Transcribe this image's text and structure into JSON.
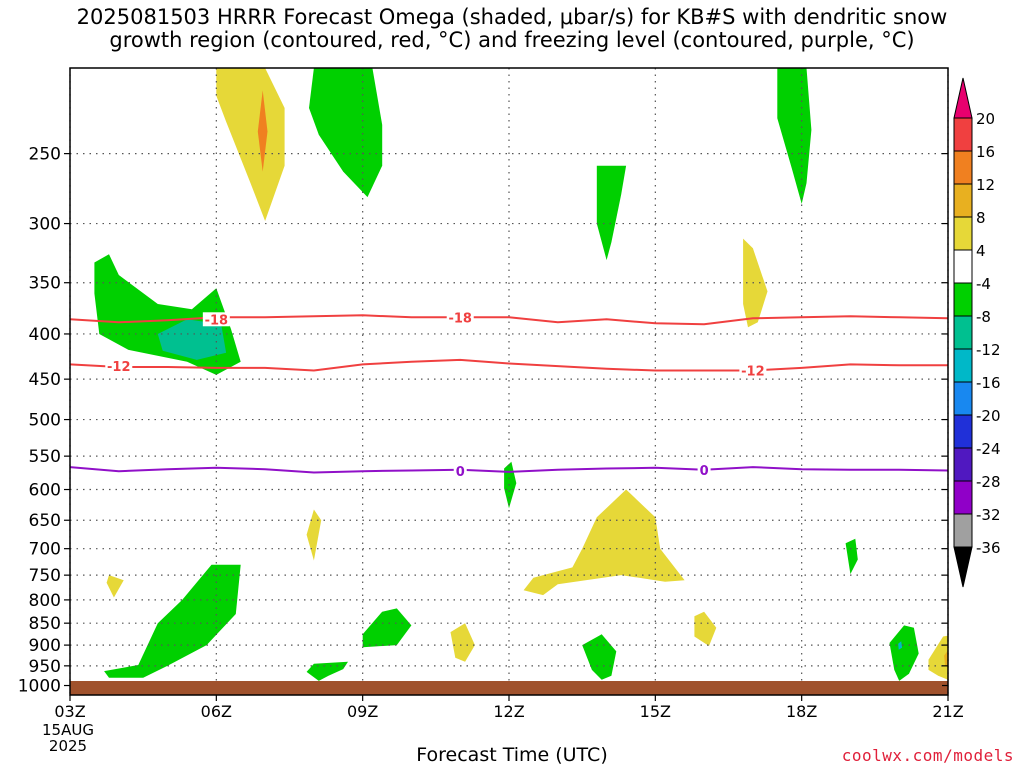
{
  "chart_data": {
    "type": "heatmap",
    "title_line1": "2025081503 HRRR Forecast Omega (shaded, μbar/s) for KB#S with dendritic snow",
    "title_line2": "growth region (contoured, red, °C) and freezing level (contoured, purple, °C)",
    "xlabel": "Forecast Time (UTC)",
    "ylabel": "",
    "x_ticks": [
      "03Z",
      "06Z",
      "09Z",
      "12Z",
      "15Z",
      "18Z",
      "21Z"
    ],
    "x_tick_hours": [
      3,
      6,
      9,
      12,
      15,
      18,
      21
    ],
    "x_date_lines": [
      "15AUG",
      "2025"
    ],
    "xlim": [
      3,
      21
    ],
    "y_ticks": [
      250,
      300,
      350,
      400,
      450,
      500,
      550,
      600,
      650,
      700,
      750,
      800,
      850,
      900,
      950,
      1000
    ],
    "ylim": [
      200,
      1025
    ],
    "y_scale": "log-pressure, inverted",
    "grid": true,
    "colorbar": {
      "levels": [
        20,
        16,
        12,
        8,
        4,
        -4,
        -8,
        -12,
        -16,
        -20,
        -24,
        -28,
        -32,
        -36
      ],
      "colors": [
        "#e8006e",
        "#f04040",
        "#f08020",
        "#e8b020",
        "#e6d838",
        "#ffffff",
        "#00d000",
        "#00c090",
        "#00b8c8",
        "#1888f0",
        "#2030d8",
        "#5018c0",
        "#9000c8",
        "#a0a0a0",
        "#000000"
      ]
    },
    "contours": [
      {
        "label": "-18",
        "color": "#f04040",
        "points": [
          [
            3,
            385
          ],
          [
            4,
            388
          ],
          [
            5,
            386
          ],
          [
            6,
            383
          ],
          [
            7,
            383
          ],
          [
            8,
            382
          ],
          [
            9,
            381
          ],
          [
            10,
            383
          ],
          [
            11,
            383
          ],
          [
            12,
            383
          ],
          [
            13,
            388
          ],
          [
            14,
            385
          ],
          [
            15,
            389
          ],
          [
            16,
            390
          ],
          [
            17,
            384
          ],
          [
            18,
            383
          ],
          [
            19,
            382
          ],
          [
            20,
            383
          ],
          [
            21,
            384
          ]
        ],
        "label_at": [
          [
            6,
            385
          ],
          [
            11,
            383
          ]
        ]
      },
      {
        "label": "-12",
        "color": "#f04040",
        "points": [
          [
            3,
            433
          ],
          [
            4,
            436
          ],
          [
            5,
            436
          ],
          [
            6,
            437
          ],
          [
            7,
            437
          ],
          [
            8,
            440
          ],
          [
            9,
            433
          ],
          [
            10,
            430
          ],
          [
            11,
            428
          ],
          [
            12,
            432
          ],
          [
            13,
            435
          ],
          [
            14,
            438
          ],
          [
            15,
            440
          ],
          [
            16,
            440
          ],
          [
            17,
            440
          ],
          [
            18,
            437
          ],
          [
            19,
            433
          ],
          [
            20,
            434
          ],
          [
            21,
            434
          ]
        ],
        "label_at": [
          [
            4,
            435
          ],
          [
            17,
            440
          ]
        ]
      },
      {
        "label": "0",
        "color": "#9010c8",
        "points": [
          [
            3,
            566
          ],
          [
            4,
            572
          ],
          [
            5,
            569
          ],
          [
            6,
            567
          ],
          [
            7,
            569
          ],
          [
            8,
            574
          ],
          [
            9,
            572
          ],
          [
            10,
            571
          ],
          [
            11,
            570
          ],
          [
            12,
            573
          ],
          [
            13,
            570
          ],
          [
            14,
            568
          ],
          [
            15,
            567
          ],
          [
            16,
            570
          ],
          [
            17,
            566
          ],
          [
            18,
            569
          ],
          [
            19,
            570
          ],
          [
            20,
            570
          ],
          [
            21,
            571
          ]
        ],
        "label_at": [
          [
            11,
            572
          ],
          [
            16,
            570
          ]
        ]
      }
    ],
    "shaded_regions": [
      {
        "color": "#e6d838",
        "points": [
          [
            6,
            200
          ],
          [
            7,
            200
          ],
          [
            7.4,
            222
          ],
          [
            7.4,
            258
          ],
          [
            7,
            298
          ],
          [
            6.7,
            270
          ],
          [
            6.2,
            230
          ],
          [
            6,
            215
          ]
        ]
      },
      {
        "color": "#f08020",
        "points": [
          [
            6.85,
            236
          ],
          [
            6.95,
            212
          ],
          [
            7.05,
            236
          ],
          [
            6.95,
            262
          ]
        ]
      },
      {
        "color": "#00d000",
        "points": [
          [
            8,
            200
          ],
          [
            9.2,
            200
          ],
          [
            9.4,
            232
          ],
          [
            9.4,
            258
          ],
          [
            9.1,
            280
          ],
          [
            8.6,
            262
          ],
          [
            8.1,
            238
          ],
          [
            7.9,
            222
          ]
        ]
      },
      {
        "color": "#00d000",
        "points": [
          [
            3.5,
            332
          ],
          [
            3.5,
            360
          ],
          [
            3.6,
            400
          ],
          [
            4.2,
            417
          ],
          [
            5.4,
            430
          ],
          [
            6,
            445
          ],
          [
            6.5,
            430
          ],
          [
            6.3,
            395
          ],
          [
            6,
            355
          ],
          [
            5.5,
            375
          ],
          [
            4.8,
            370
          ],
          [
            4,
            343
          ],
          [
            3.8,
            325
          ]
        ]
      },
      {
        "color": "#00c090",
        "points": [
          [
            4.8,
            400
          ],
          [
            5.4,
            385
          ],
          [
            6.1,
            390
          ],
          [
            6.2,
            420
          ],
          [
            5.6,
            428
          ],
          [
            4.9,
            418
          ]
        ]
      },
      {
        "color": "#00d000",
        "points": [
          [
            13.8,
            258
          ],
          [
            14.4,
            258
          ],
          [
            14.3,
            278
          ],
          [
            14.1,
            315
          ],
          [
            14,
            330
          ],
          [
            13.8,
            300
          ],
          [
            13.8,
            275
          ]
        ]
      },
      {
        "color": "#00d000",
        "points": [
          [
            17.5,
            200
          ],
          [
            18.1,
            200
          ],
          [
            18.2,
            235
          ],
          [
            18.1,
            270
          ],
          [
            18,
            285
          ],
          [
            17.8,
            260
          ],
          [
            17.5,
            228
          ]
        ]
      },
      {
        "color": "#e6d838",
        "points": [
          [
            16.8,
            312
          ],
          [
            17,
            320
          ],
          [
            17.3,
            358
          ],
          [
            17.1,
            388
          ],
          [
            16.9,
            393
          ],
          [
            16.8,
            370
          ]
        ]
      },
      {
        "color": "#00d000",
        "points": [
          [
            11.9,
            568
          ],
          [
            12.05,
            558
          ],
          [
            12.15,
            590
          ],
          [
            12,
            630
          ],
          [
            11.9,
            598
          ]
        ]
      },
      {
        "color": "#e6d838",
        "points": [
          [
            8,
            632
          ],
          [
            8.15,
            650
          ],
          [
            8,
            722
          ],
          [
            7.85,
            675
          ]
        ]
      },
      {
        "color": "#e6d838",
        "points": [
          [
            3.8,
            750
          ],
          [
            4.1,
            760
          ],
          [
            3.9,
            795
          ],
          [
            3.75,
            765
          ]
        ]
      },
      {
        "color": "#e6d838",
        "points": [
          [
            12.5,
            755
          ],
          [
            13.3,
            735
          ],
          [
            13.5,
            700
          ],
          [
            13.8,
            645
          ],
          [
            14.4,
            600
          ],
          [
            15,
            645
          ],
          [
            15.1,
            700
          ],
          [
            15.6,
            760
          ],
          [
            15.2,
            763
          ],
          [
            14.3,
            750
          ],
          [
            13,
            768
          ],
          [
            12.7,
            790
          ],
          [
            12.3,
            780
          ]
        ]
      },
      {
        "color": "#00d000",
        "points": [
          [
            3.7,
            963
          ],
          [
            4.4,
            948
          ],
          [
            4.8,
            850
          ],
          [
            5.3,
            800
          ],
          [
            5.9,
            730
          ],
          [
            6.5,
            730
          ],
          [
            6.4,
            830
          ],
          [
            5.8,
            900
          ],
          [
            5,
            950
          ],
          [
            4.5,
            980
          ],
          [
            3.8,
            980
          ]
        ]
      },
      {
        "color": "#00d000",
        "points": [
          [
            8,
            945
          ],
          [
            8.7,
            940
          ],
          [
            8.6,
            958
          ],
          [
            8.3,
            975
          ],
          [
            8.1,
            988
          ],
          [
            7.85,
            965
          ]
        ]
      },
      {
        "color": "#00d000",
        "points": [
          [
            9,
            875
          ],
          [
            9.4,
            825
          ],
          [
            9.7,
            818
          ],
          [
            10,
            855
          ],
          [
            9.7,
            900
          ],
          [
            9,
            905
          ]
        ]
      },
      {
        "color": "#e6d838",
        "points": [
          [
            10.8,
            870
          ],
          [
            11.1,
            850
          ],
          [
            11.3,
            900
          ],
          [
            11.1,
            940
          ],
          [
            10.9,
            930
          ]
        ]
      },
      {
        "color": "#00d000",
        "points": [
          [
            13.5,
            900
          ],
          [
            13.9,
            875
          ],
          [
            14.2,
            915
          ],
          [
            14.1,
            975
          ],
          [
            13.9,
            985
          ],
          [
            13.7,
            960
          ]
        ]
      },
      {
        "color": "#e6d838",
        "points": [
          [
            15.8,
            835
          ],
          [
            16,
            825
          ],
          [
            16.25,
            860
          ],
          [
            16.1,
            902
          ],
          [
            15.8,
            880
          ]
        ]
      },
      {
        "color": "#00d000",
        "points": [
          [
            18.9,
            690
          ],
          [
            19.1,
            682
          ],
          [
            19.15,
            720
          ],
          [
            19,
            748
          ]
        ]
      },
      {
        "color": "#00d000",
        "points": [
          [
            19.8,
            895
          ],
          [
            20.1,
            855
          ],
          [
            20.3,
            860
          ],
          [
            20.4,
            920
          ],
          [
            20.2,
            970
          ],
          [
            20,
            988
          ],
          [
            19.9,
            960
          ]
        ]
      },
      {
        "color": "#00b8c8",
        "points": [
          [
            19.98,
            897
          ],
          [
            20.04,
            891
          ],
          [
            20.06,
            906
          ],
          [
            19.99,
            911
          ]
        ]
      },
      {
        "color": "#e6d838",
        "points": [
          [
            20.6,
            935
          ],
          [
            20.9,
            880
          ],
          [
            21,
            878
          ],
          [
            21,
            985
          ],
          [
            20.8,
            975
          ],
          [
            20.6,
            960
          ]
        ]
      },
      {
        "color": "#e8b020",
        "points": [
          [
            20.92,
            925
          ],
          [
            21,
            912
          ],
          [
            21,
            948
          ],
          [
            20.94,
            950
          ]
        ]
      }
    ]
  },
  "credit": "coolwx.com/models"
}
